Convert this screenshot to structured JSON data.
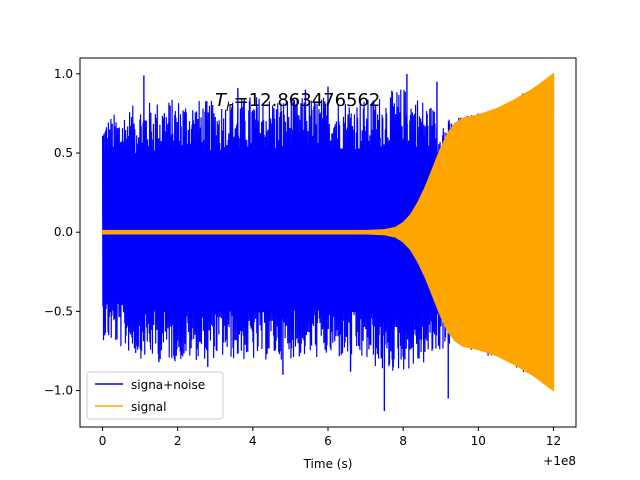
{
  "chart_data": {
    "type": "line",
    "title": "",
    "xlabel": "Time (s)",
    "ylabel": "",
    "x_offset_label": "+1e8",
    "xlim": [
      -0.6,
      12.6
    ],
    "ylim": [
      -1.23,
      1.1
    ],
    "x_ticks": [
      {
        "value": 0,
        "label": "0"
      },
      {
        "value": 2,
        "label": "2"
      },
      {
        "value": 4,
        "label": "4"
      },
      {
        "value": 6,
        "label": "6"
      },
      {
        "value": 8,
        "label": "8"
      },
      {
        "value": 10,
        "label": "10"
      },
      {
        "value": 12,
        "label": "12"
      }
    ],
    "y_ticks": [
      {
        "value": -1.0,
        "label": "−1.0"
      },
      {
        "value": -0.5,
        "label": "−0.5"
      },
      {
        "value": 0.0,
        "label": "0.0"
      },
      {
        "value": 0.5,
        "label": "0.5"
      },
      {
        "value": 1.0,
        "label": "1.0"
      }
    ],
    "grid": false,
    "legend_position": "lower-left",
    "annotation": {
      "math_base": "T",
      "math_sub": "h",
      "value_text": "=12.863476562"
    },
    "series": [
      {
        "name": "signa+noise",
        "color": "#0000ff",
        "envelope_x": [
          0,
          1,
          2,
          3,
          4,
          5,
          6,
          7,
          7.5,
          8,
          8.5,
          8.8,
          9.0,
          9.2,
          9.4,
          9.6,
          10,
          10.5,
          11,
          11.5,
          12
        ],
        "envelope_upper": [
          0.72,
          0.82,
          0.85,
          0.83,
          0.87,
          0.85,
          0.86,
          0.84,
          0.88,
          0.92,
          0.85,
          0.8,
          0.76,
          0.72,
          0.73,
          0.74,
          0.77,
          0.81,
          0.86,
          0.92,
          0.99
        ],
        "envelope_lower": [
          -0.68,
          -0.8,
          -0.82,
          -0.8,
          -0.82,
          -0.8,
          -0.8,
          -0.82,
          -0.9,
          -0.88,
          -0.85,
          -0.8,
          -0.76,
          -0.72,
          -0.73,
          -0.74,
          -0.77,
          -0.81,
          -0.86,
          -0.92,
          -0.99
        ],
        "spikes": [
          {
            "x": 1.1,
            "y": 0.99
          },
          {
            "x": 3.6,
            "y": 0.91
          },
          {
            "x": 8.1,
            "y": 1.0
          },
          {
            "x": 8.9,
            "y": 0.95
          },
          {
            "x": 1.5,
            "y": -0.82
          },
          {
            "x": 4.8,
            "y": -0.9
          },
          {
            "x": 7.5,
            "y": -1.13
          },
          {
            "x": 9.2,
            "y": -1.05
          },
          {
            "x": 6.0,
            "y": 0.92
          },
          {
            "x": 2.8,
            "y": -0.85
          },
          {
            "x": 5.4,
            "y": 0.9
          },
          {
            "x": 6.6,
            "y": -0.88
          }
        ]
      },
      {
        "name": "signal",
        "color": "#ffa500",
        "envelope_x": [
          0,
          2,
          4,
          6,
          7,
          7.5,
          7.8,
          8.0,
          8.2,
          8.4,
          8.6,
          8.8,
          9.0,
          9.2,
          9.4,
          9.6,
          9.8,
          10.0,
          10.5,
          11.0,
          11.5,
          12.0
        ],
        "envelope_upper": [
          0.01,
          0.01,
          0.01,
          0.01,
          0.01,
          0.015,
          0.03,
          0.06,
          0.11,
          0.19,
          0.29,
          0.41,
          0.53,
          0.63,
          0.69,
          0.72,
          0.73,
          0.74,
          0.78,
          0.84,
          0.91,
          1.0
        ],
        "envelope_lower": [
          -0.01,
          -0.01,
          -0.01,
          -0.01,
          -0.01,
          -0.015,
          -0.03,
          -0.06,
          -0.11,
          -0.19,
          -0.29,
          -0.41,
          -0.53,
          -0.63,
          -0.69,
          -0.72,
          -0.73,
          -0.74,
          -0.78,
          -0.84,
          -0.91,
          -1.0
        ]
      }
    ]
  }
}
